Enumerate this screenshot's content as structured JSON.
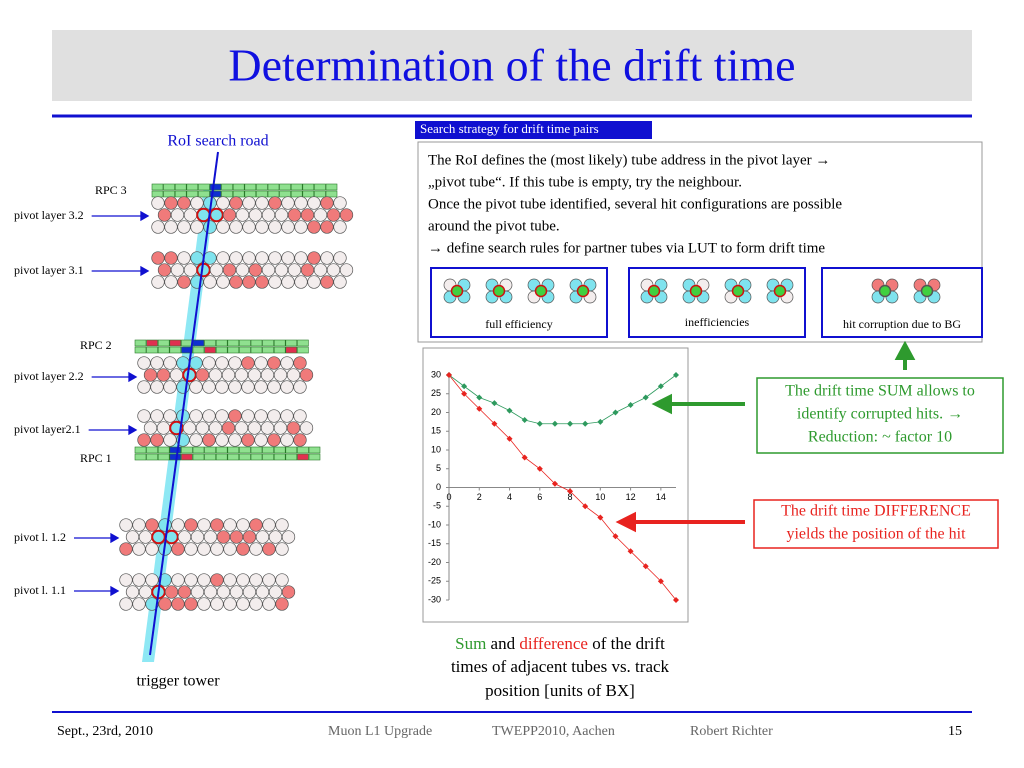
{
  "header": {
    "title": "Determination of the drift time"
  },
  "diagram": {
    "road_label": "RoI search road",
    "tower_label": "trigger tower",
    "labels": [
      "RPC 3",
      "pivot layer 3.2",
      "pivot layer 3.1",
      "RPC 2",
      "pivot layer 2.2",
      "pivot layer2.1",
      "RPC 1",
      "pivot l. 1.2",
      "pivot l. 1.1"
    ]
  },
  "strategy": {
    "heading": "Search strategy for drift time pairs",
    "lines": [
      "The RoI defines the (most likely) tube address in the pivot layer →",
      "„pivot tube“. If this tube is empty, try the neighbour.",
      "Once the pivot tube identified, several hit configurations are possible",
      "around the pivot tube.",
      "→ define search rules for partner tubes via LUT to form drift time"
    ],
    "configs": [
      "full efficiency",
      "inefficiencies",
      "hit corruption due to BG"
    ]
  },
  "chart_data": {
    "type": "line",
    "x": [
      0,
      1,
      2,
      3,
      4,
      5,
      6,
      7,
      8,
      9,
      10,
      11,
      12,
      13,
      14,
      15
    ],
    "series": [
      {
        "name": "Sum",
        "color": "#2e9a5e",
        "values": [
          30,
          27,
          24,
          22.5,
          20.5,
          18,
          17,
          17,
          17,
          17,
          17.5,
          20,
          22,
          24,
          27,
          30
        ]
      },
      {
        "name": "difference",
        "color": "#e8231f",
        "values": [
          30,
          25,
          21,
          17,
          13,
          8,
          5,
          1,
          -1,
          -5,
          -8,
          -13,
          -17,
          -21,
          -25,
          -30
        ]
      }
    ],
    "xlim": [
      0,
      15
    ],
    "xticks": [
      0,
      2,
      4,
      6,
      8,
      10,
      12,
      14
    ],
    "ylim": [
      -30,
      30
    ],
    "yticks": [
      -30,
      -25,
      -20,
      -15,
      -10,
      -5,
      0,
      5,
      10,
      15,
      20,
      25,
      30
    ],
    "grid": false,
    "caption": {
      "middle": "and",
      "rest": [
        "of the drift",
        "times of adjacent tubes vs. track",
        "position [units of BX]"
      ]
    }
  },
  "annotations": {
    "sum": [
      "The drift time SUM allows to",
      "identify corrupted hits. →",
      "Reduction: ~ factor 10"
    ],
    "difference": [
      "The drift time DIFFERENCE",
      "yields the position of the hit"
    ]
  },
  "footer": {
    "date": "Sept., 23rd, 2010",
    "event": "Muon L1 Upgrade",
    "venue": "TWEPP2010, Aachen",
    "author": "Robert Richter",
    "page": "15"
  }
}
